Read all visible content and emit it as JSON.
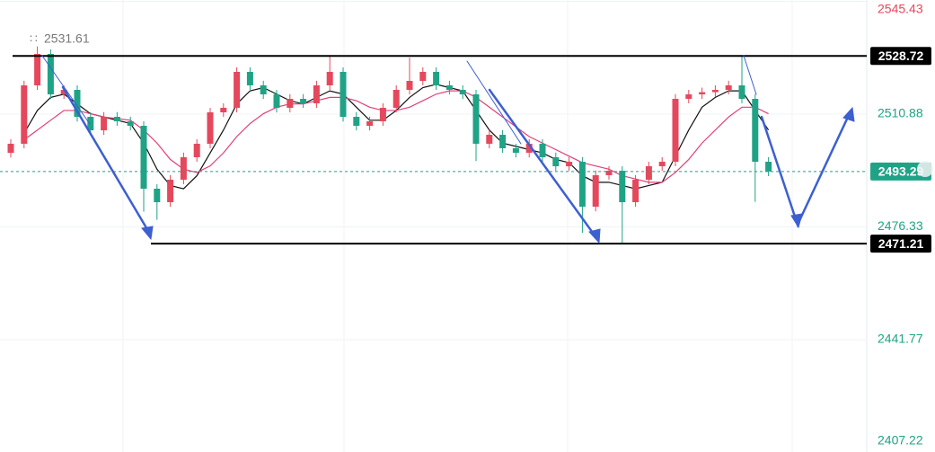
{
  "chart_data": {
    "type": "candlestick",
    "up_color": "#e5485c",
    "down_color": "#1fa386",
    "open": [
      2499.0,
      2501.8,
      2519.69,
      2529.32,
      2516.94,
      2518.31,
      2510.05,
      2505.92,
      2510.05,
      2508.68,
      2507.3,
      2488.03,
      2483.9,
      2490.78,
      2497.67,
      2501.8,
      2511.43,
      2512.81,
      2523.82,
      2519.69,
      2516.94,
      2512.81,
      2515.56,
      2514.18,
      2519.69,
      2523.82,
      2510.05,
      2507.3,
      2508.68,
      2512.81,
      2518.31,
      2521.06,
      2523.82,
      2519.69,
      2518.31,
      2516.94,
      2501.8,
      2504.55,
      2500.42,
      2499.04,
      2501.8,
      2497.67,
      2494.91,
      2496.29,
      2482.52,
      2492.16,
      2493.53,
      2483.9,
      2490.78,
      2494.91,
      2496.29,
      2515.56,
      2516.94,
      2517.6,
      2518.31,
      2519.69,
      2515.56,
      2496.29
    ],
    "high": [
      2503.2,
      2521.1,
      2531.61,
      2530.7,
      2519.7,
      2519.7,
      2511.5,
      2511.5,
      2511.5,
      2510.1,
      2508.7,
      2489.4,
      2492.2,
      2499.1,
      2503.2,
      2512.8,
      2514.2,
      2525.2,
      2525.2,
      2521.1,
      2518.3,
      2517.0,
      2517.0,
      2521.1,
      2528.72,
      2525.2,
      2511.5,
      2510.1,
      2514.2,
      2519.7,
      2528.2,
      2525.2,
      2525.2,
      2521.1,
      2519.7,
      2518.3,
      2506.0,
      2506.0,
      2501.8,
      2503.2,
      2503.2,
      2499.1,
      2497.7,
      2497.7,
      2493.6,
      2494.9,
      2494.9,
      2492.2,
      2496.3,
      2497.7,
      2517.0,
      2518.3,
      2519.0,
      2519.7,
      2521.1,
      2528.72,
      2517.0,
      2497.7
    ],
    "low": [
      2497.6,
      2500.4,
      2518.3,
      2515.5,
      2515.5,
      2508.6,
      2504.5,
      2504.5,
      2507.3,
      2505.9,
      2481.0,
      2478.5,
      2482.5,
      2489.4,
      2496.3,
      2500.4,
      2510.0,
      2511.4,
      2518.3,
      2515.5,
      2511.4,
      2511.4,
      2512.8,
      2512.8,
      2518.3,
      2508.6,
      2505.9,
      2505.9,
      2507.3,
      2511.4,
      2516.9,
      2519.7,
      2518.3,
      2516.9,
      2515.5,
      2496.5,
      2500.4,
      2499.0,
      2497.6,
      2497.6,
      2496.3,
      2493.5,
      2493.5,
      2474.5,
      2481.1,
      2490.8,
      2471.21,
      2482.5,
      2489.4,
      2493.5,
      2494.9,
      2514.2,
      2515.5,
      2516.2,
      2516.9,
      2514.2,
      2484.0,
      2491.9
    ],
    "close": [
      2501.8,
      2519.69,
      2529.32,
      2516.94,
      2518.31,
      2510.05,
      2505.92,
      2510.05,
      2508.68,
      2507.3,
      2488.03,
      2483.9,
      2490.78,
      2497.67,
      2501.8,
      2511.43,
      2512.81,
      2523.82,
      2519.69,
      2516.94,
      2512.81,
      2515.56,
      2514.18,
      2519.69,
      2523.82,
      2510.05,
      2507.3,
      2508.68,
      2512.81,
      2518.31,
      2521.06,
      2523.82,
      2519.69,
      2518.31,
      2516.94,
      2501.8,
      2504.55,
      2500.42,
      2499.04,
      2501.8,
      2497.67,
      2494.91,
      2496.29,
      2482.52,
      2492.16,
      2493.53,
      2483.9,
      2490.78,
      2494.91,
      2496.29,
      2515.56,
      2516.94,
      2517.6,
      2518.31,
      2519.69,
      2515.56,
      2496.29,
      2493.29
    ],
    "series": [
      {
        "color": "#111111",
        "values": [
          null,
          2505,
          2512,
          2516,
          2517,
          2514,
          2511,
          2510,
          2509,
          2508,
          2502,
          2494,
          2489,
          2488,
          2492,
          2499,
          2506,
          2514,
          2518,
          2519,
          2517,
          2515,
          2514,
          2516,
          2518,
          2517,
          2513,
          2509,
          2509,
          2512,
          2516,
          2519,
          2520,
          2519,
          2518,
          2512,
          2506,
          2502,
          2501,
          2500,
          2499,
          2497,
          2496,
          2492,
          2490,
          2490,
          2489,
          2488,
          2489,
          2490,
          2498,
          2506,
          2513,
          2516,
          2518,
          2518,
          2512,
          2506
        ]
      },
      {
        "color": "#e0407a",
        "values": [
          null,
          2503,
          2506,
          2509,
          2512,
          2512,
          2511,
          2510,
          2509.5,
          2509,
          2506,
          2502,
          2497,
          2494,
          2493,
          2495,
          2499,
          2504,
          2508,
          2511,
          2513,
          2514,
          2514,
          2515,
          2516,
          2516,
          2515,
          2513,
          2512,
          2512,
          2513,
          2515,
          2517,
          2518,
          2518,
          2516,
          2513,
          2510,
          2507,
          2504,
          2502,
          2500,
          2498,
          2496,
          2495,
          2494,
          2492,
          2491,
          2490,
          2490,
          2493,
          2497,
          2502,
          2506,
          2510,
          2513,
          2513,
          2511
        ]
      }
    ],
    "ylim": [
      2407.37,
      2545.84
    ],
    "yticks": [
      2545.43,
      2510.88,
      2476.33,
      2441.77,
      2407.22
    ],
    "ytick_colors": [
      "#e5485c",
      "#1fa386",
      "#1fa386",
      "#1fa386",
      "#1fa386"
    ],
    "grid": true,
    "levels": [
      2528.72,
      2471.21
    ],
    "current_price": 2493.29,
    "high_label": 2531.61
  }
}
